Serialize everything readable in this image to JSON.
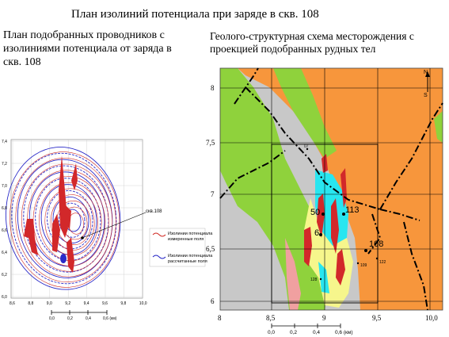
{
  "titles": {
    "main": "План изолиний потенциала при заряде в скв. 108",
    "left_line1": "План подобранных проводников с",
    "left_line2": "изолиниями потенциала от заряда в",
    "left_line3": "скв. 108",
    "right_line1": "Геолого-структурная схема месторождения с",
    "right_line2": "проекцией подобранных рудных тел"
  },
  "left_map": {
    "y_ticks": [
      "7,4",
      "7,2",
      "7,0",
      "6,8",
      "6,6",
      "6,4",
      "6,2",
      "6,0"
    ],
    "x_ticks": [
      "8,6",
      "8,8",
      "9,0",
      "9,2",
      "9,4",
      "9,6",
      "9,8",
      "10,0"
    ],
    "well_label": "скв.108",
    "legend": [
      {
        "label_line1": "Изолинии потенциала",
        "label_line2": "измеренные поля",
        "color": "#d2302a"
      },
      {
        "label_line1": "Изолинии потенциала",
        "label_line2": "рассчитанные поля",
        "color": "#2a2ac8"
      }
    ],
    "scale_labels": [
      "0,0",
      "0,2",
      "0,4",
      "0,6 (км)"
    ]
  },
  "right_map": {
    "compass": {
      "north": "N",
      "south": "S"
    },
    "y_ticks": [
      "8",
      "7,5",
      "7",
      "6,5",
      "6"
    ],
    "x_ticks": [
      "8",
      "8,5",
      "9",
      "9,5",
      "10,0"
    ],
    "scale_labels": [
      "0,0",
      "0,2",
      "0,4",
      "0,6 (км)"
    ],
    "wells": [
      {
        "label": "50"
      },
      {
        "label": "113"
      },
      {
        "label": "6"
      },
      {
        "label": "108"
      },
      {
        "label": "07"
      },
      {
        "label": "109"
      },
      {
        "label": "122"
      },
      {
        "label": "128"
      }
    ],
    "colors": {
      "orange": "#f7963c",
      "green": "#8fd23c",
      "cyan": "#28e6f0",
      "yellow": "#f6f68c",
      "red": "#d2282a",
      "gray": "#c8c8c8",
      "pink": "#f0a0a0"
    }
  }
}
